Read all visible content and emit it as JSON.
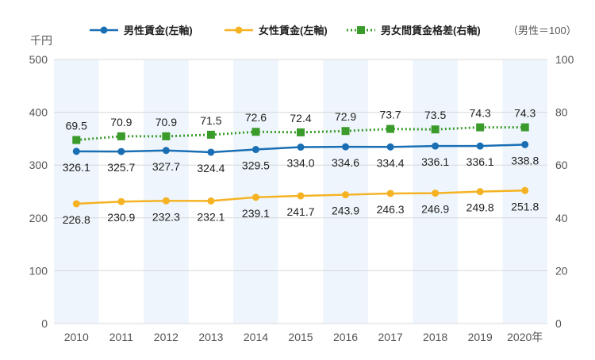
{
  "chart_data": {
    "type": "line",
    "categories": [
      "2010",
      "2011",
      "2012",
      "2013",
      "2014",
      "2015",
      "2016",
      "2017",
      "2018",
      "2019",
      "2020年"
    ],
    "y_left": {
      "unit_label": "千円",
      "ticks": [
        "0",
        "100",
        "200",
        "300",
        "400",
        "500"
      ],
      "range": [
        0,
        500
      ]
    },
    "y_right": {
      "ticks": [
        "0",
        "20",
        "40",
        "60",
        "80",
        "100"
      ],
      "range": [
        0,
        100
      ]
    },
    "legend_note": "（男性＝100）",
    "legend_placement": "top",
    "grid": true,
    "series": [
      {
        "name": "男性賃金(左軸)",
        "axis": "left",
        "color": "#1a6fb4",
        "marker": "circle",
        "line": "solid",
        "values": [
          326.1,
          325.7,
          327.7,
          324.4,
          329.5,
          334.0,
          334.6,
          334.4,
          336.1,
          336.1,
          338.8
        ],
        "labels": [
          "326.1",
          "325.7",
          "327.7",
          "324.4",
          "329.5",
          "334.0",
          "334.6",
          "334.4",
          "336.1",
          "336.1",
          "338.8"
        ]
      },
      {
        "name": "女性賃金(左軸)",
        "axis": "left",
        "color": "#f5b324",
        "marker": "circle",
        "line": "solid",
        "values": [
          226.8,
          230.9,
          232.3,
          232.1,
          239.1,
          241.7,
          243.9,
          246.3,
          246.9,
          249.8,
          251.8
        ],
        "labels": [
          "226.8",
          "230.9",
          "232.3",
          "232.1",
          "239.1",
          "241.7",
          "243.9",
          "246.3",
          "246.9",
          "249.8",
          "251.8"
        ]
      },
      {
        "name": "男女間賃金格差(右軸)",
        "axis": "right",
        "color": "#3a9b2b",
        "marker": "square",
        "line": "dotted",
        "values": [
          69.5,
          70.9,
          70.9,
          71.5,
          72.6,
          72.4,
          72.9,
          73.7,
          73.5,
          74.3,
          74.3
        ],
        "labels": [
          "69.5",
          "70.9",
          "70.9",
          "71.5",
          "72.6",
          "72.4",
          "72.9",
          "73.7",
          "73.5",
          "74.3",
          "74.3"
        ]
      }
    ],
    "colors": {
      "band": "#eef5fc",
      "grid": "#d8d8d8"
    }
  }
}
